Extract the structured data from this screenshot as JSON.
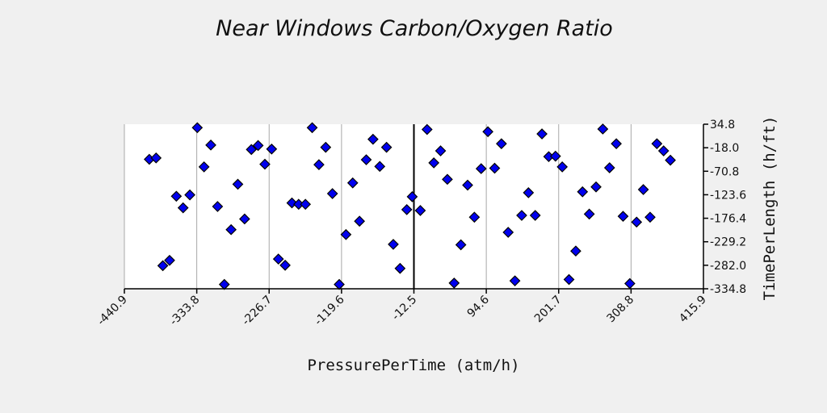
{
  "chart_data": {
    "type": "scatter",
    "title": "Near Windows Carbon/Oxygen Ratio",
    "xlabel": "PressurePerTime (atm/h)",
    "ylabel": "TimePerLength (h/ft)",
    "xlim": [
      -440.9,
      415.9
    ],
    "ylim": [
      -334.8,
      34.8
    ],
    "x_ticks": [
      "-440.9",
      "-333.8",
      "-226.7",
      "-119.6",
      "-12.5",
      "94.6",
      "201.7",
      "308.8",
      "415.9"
    ],
    "y_ticks": [
      "34.8",
      "-18.0",
      "-70.8",
      "-123.6",
      "-176.4",
      "-229.2",
      "-282.0",
      "-334.8"
    ],
    "vertical_grid": true,
    "zero_line_x": -12.5,
    "marker": "diamond",
    "marker_color": "#0000ee",
    "points": [
      [
        -404,
        -44
      ],
      [
        -394,
        -41
      ],
      [
        -384,
        -283
      ],
      [
        -374,
        -271
      ],
      [
        -364,
        -127
      ],
      [
        -354,
        -153
      ],
      [
        -344,
        -124
      ],
      [
        -333,
        27
      ],
      [
        -323,
        -61
      ],
      [
        -313,
        -12
      ],
      [
        -303,
        -150
      ],
      [
        -293,
        -325
      ],
      [
        -283,
        -202
      ],
      [
        -273,
        -100
      ],
      [
        -263,
        -178
      ],
      [
        -253,
        -22
      ],
      [
        -243,
        -13
      ],
      [
        -233,
        -55
      ],
      [
        -223,
        -21
      ],
      [
        -213,
        -268
      ],
      [
        -203,
        -282
      ],
      [
        -193,
        -142
      ],
      [
        -183,
        -145
      ],
      [
        -173,
        -145
      ],
      [
        -163,
        27
      ],
      [
        -153,
        -56
      ],
      [
        -143,
        -17
      ],
      [
        -133,
        -121
      ],
      [
        -123,
        -325
      ],
      [
        -113,
        -213
      ],
      [
        -103,
        -97
      ],
      [
        -93,
        -183
      ],
      [
        -83,
        -45
      ],
      [
        -73,
        1
      ],
      [
        -63,
        -60
      ],
      [
        -53,
        -17
      ],
      [
        -43,
        -235
      ],
      [
        -33,
        -289
      ],
      [
        -23,
        -157
      ],
      [
        -15,
        -128
      ],
      [
        -3,
        -159
      ],
      [
        7,
        23
      ],
      [
        17,
        -52
      ],
      [
        27,
        -25
      ],
      [
        37,
        -89
      ],
      [
        47,
        -322
      ],
      [
        57,
        -236
      ],
      [
        67,
        -102
      ],
      [
        77,
        -174
      ],
      [
        87,
        -65
      ],
      [
        97,
        18
      ],
      [
        107,
        -64
      ],
      [
        117,
        -9
      ],
      [
        127,
        -208
      ],
      [
        137,
        -317
      ],
      [
        147,
        -170
      ],
      [
        157,
        -119
      ],
      [
        167,
        -170
      ],
      [
        177,
        13
      ],
      [
        187,
        -38
      ],
      [
        197,
        -37
      ],
      [
        207,
        -61
      ],
      [
        217,
        -314
      ],
      [
        227,
        -250
      ],
      [
        237,
        -117
      ],
      [
        247,
        -167
      ],
      [
        257,
        -106
      ],
      [
        267,
        24
      ],
      [
        277,
        -63
      ],
      [
        287,
        -9
      ],
      [
        297,
        -172
      ],
      [
        307,
        -323
      ],
      [
        317,
        -185
      ],
      [
        327,
        -112
      ],
      [
        337,
        -174
      ],
      [
        347,
        -9
      ],
      [
        357,
        -25
      ],
      [
        367,
        -46
      ]
    ]
  }
}
